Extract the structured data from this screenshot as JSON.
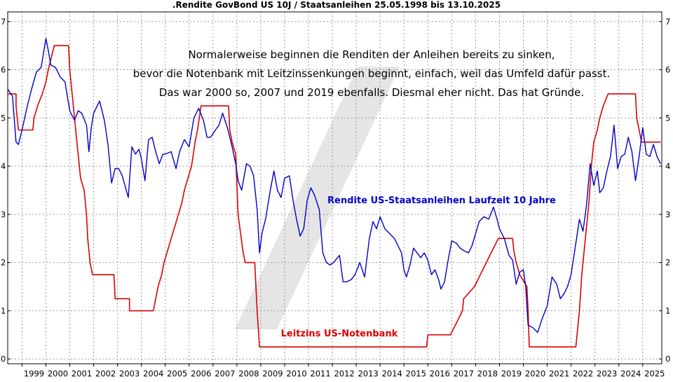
{
  "chart_data": {
    "type": "line",
    "title": ".Rendite GovBond US 10J / Staatsanleihen 25.05.1998 bis 13.10.2025",
    "xlabel": "",
    "ylabel": "",
    "xlim": [
      1998.4,
      2025.8
    ],
    "ylim": [
      -0.1,
      7.2
    ],
    "grid": true,
    "x_ticks": [
      "1999",
      "2000",
      "2001",
      "2002",
      "2003",
      "2004",
      "2005",
      "2006",
      "2007",
      "2008",
      "2009",
      "2010",
      "2011",
      "2012",
      "2013",
      "2014",
      "2015",
      "2016",
      "2017",
      "2018",
      "2019",
      "2020",
      "2021",
      "2022",
      "2023",
      "2024",
      "2025"
    ],
    "y_ticks": [
      "0",
      "1",
      "2",
      "3",
      "4",
      "5",
      "6",
      "7"
    ],
    "annotation_lines": [
      "Normalerweise beginnen die Renditen der Anleihen bereits zu sinken,",
      "bevor die Notenbank mit Leitzinssenkungen beginnt, einfach, weil das Umfeld dafür passt.",
      "Das war 2000 so, 2007 und 2019 ebenfalls. Diesmal eher nicht. Das hat Gründe."
    ],
    "series": [
      {
        "name": "Rendite US-Staatsanleihen Laufzeit 10 Jahre",
        "color": "#0000cc",
        "points": [
          [
            1998.4,
            5.6
          ],
          [
            1998.6,
            5.45
          ],
          [
            1998.75,
            4.5
          ],
          [
            1998.85,
            4.45
          ],
          [
            1999.0,
            4.75
          ],
          [
            1999.2,
            5.2
          ],
          [
            1999.4,
            5.6
          ],
          [
            1999.6,
            5.95
          ],
          [
            1999.8,
            6.05
          ],
          [
            2000.0,
            6.65
          ],
          [
            2000.1,
            6.4
          ],
          [
            2000.2,
            6.1
          ],
          [
            2000.4,
            6.05
          ],
          [
            2000.6,
            5.85
          ],
          [
            2000.8,
            5.75
          ],
          [
            2001.0,
            5.15
          ],
          [
            2001.2,
            4.95
          ],
          [
            2001.35,
            5.15
          ],
          [
            2001.5,
            5.1
          ],
          [
            2001.7,
            4.85
          ],
          [
            2001.8,
            4.3
          ],
          [
            2001.9,
            4.8
          ],
          [
            2002.0,
            5.1
          ],
          [
            2002.25,
            5.35
          ],
          [
            2002.45,
            4.95
          ],
          [
            2002.6,
            4.45
          ],
          [
            2002.75,
            3.65
          ],
          [
            2002.9,
            3.95
          ],
          [
            2003.05,
            3.95
          ],
          [
            2003.2,
            3.8
          ],
          [
            2003.45,
            3.35
          ],
          [
            2003.6,
            4.4
          ],
          [
            2003.75,
            4.25
          ],
          [
            2003.9,
            4.35
          ],
          [
            2004.0,
            4.15
          ],
          [
            2004.15,
            3.7
          ],
          [
            2004.3,
            4.55
          ],
          [
            2004.45,
            4.6
          ],
          [
            2004.6,
            4.3
          ],
          [
            2004.75,
            4.05
          ],
          [
            2004.9,
            4.25
          ],
          [
            2005.0,
            4.25
          ],
          [
            2005.25,
            4.3
          ],
          [
            2005.45,
            3.95
          ],
          [
            2005.6,
            4.3
          ],
          [
            2005.8,
            4.55
          ],
          [
            2006.0,
            4.4
          ],
          [
            2006.2,
            5.0
          ],
          [
            2006.4,
            5.2
          ],
          [
            2006.6,
            4.95
          ],
          [
            2006.75,
            4.6
          ],
          [
            2006.9,
            4.6
          ],
          [
            2007.1,
            4.75
          ],
          [
            2007.25,
            4.85
          ],
          [
            2007.4,
            5.1
          ],
          [
            2007.6,
            4.8
          ],
          [
            2007.8,
            4.4
          ],
          [
            2007.95,
            4.05
          ],
          [
            2008.05,
            3.7
          ],
          [
            2008.2,
            3.5
          ],
          [
            2008.4,
            4.05
          ],
          [
            2008.55,
            4.0
          ],
          [
            2008.7,
            3.8
          ],
          [
            2008.85,
            3.1
          ],
          [
            2008.95,
            2.2
          ],
          [
            2009.05,
            2.6
          ],
          [
            2009.2,
            2.9
          ],
          [
            2009.4,
            3.5
          ],
          [
            2009.55,
            3.9
          ],
          [
            2009.7,
            3.5
          ],
          [
            2009.85,
            3.35
          ],
          [
            2010.0,
            3.75
          ],
          [
            2010.2,
            3.8
          ],
          [
            2010.35,
            3.3
          ],
          [
            2010.5,
            2.9
          ],
          [
            2010.65,
            2.55
          ],
          [
            2010.8,
            2.7
          ],
          [
            2010.95,
            3.3
          ],
          [
            2011.1,
            3.55
          ],
          [
            2011.25,
            3.4
          ],
          [
            2011.45,
            3.1
          ],
          [
            2011.6,
            2.2
          ],
          [
            2011.75,
            2.0
          ],
          [
            2011.9,
            1.95
          ],
          [
            2012.05,
            2.0
          ],
          [
            2012.3,
            2.15
          ],
          [
            2012.45,
            1.6
          ],
          [
            2012.6,
            1.6
          ],
          [
            2012.8,
            1.65
          ],
          [
            2012.95,
            1.75
          ],
          [
            2013.15,
            2.0
          ],
          [
            2013.35,
            1.7
          ],
          [
            2013.55,
            2.5
          ],
          [
            2013.7,
            2.85
          ],
          [
            2013.85,
            2.7
          ],
          [
            2014.0,
            2.95
          ],
          [
            2014.2,
            2.7
          ],
          [
            2014.4,
            2.6
          ],
          [
            2014.6,
            2.5
          ],
          [
            2014.75,
            2.35
          ],
          [
            2014.9,
            2.2
          ],
          [
            2015.0,
            1.85
          ],
          [
            2015.1,
            1.7
          ],
          [
            2015.25,
            1.95
          ],
          [
            2015.4,
            2.3
          ],
          [
            2015.55,
            2.2
          ],
          [
            2015.7,
            2.1
          ],
          [
            2015.85,
            2.2
          ],
          [
            2016.0,
            2.05
          ],
          [
            2016.15,
            1.75
          ],
          [
            2016.3,
            1.85
          ],
          [
            2016.45,
            1.65
          ],
          [
            2016.55,
            1.45
          ],
          [
            2016.7,
            1.6
          ],
          [
            2016.85,
            2.05
          ],
          [
            2017.0,
            2.45
          ],
          [
            2017.2,
            2.4
          ],
          [
            2017.35,
            2.3
          ],
          [
            2017.5,
            2.25
          ],
          [
            2017.7,
            2.2
          ],
          [
            2017.85,
            2.35
          ],
          [
            2018.0,
            2.6
          ],
          [
            2018.15,
            2.85
          ],
          [
            2018.35,
            2.95
          ],
          [
            2018.55,
            2.9
          ],
          [
            2018.75,
            3.15
          ],
          [
            2018.9,
            2.9
          ],
          [
            2019.0,
            2.7
          ],
          [
            2019.2,
            2.5
          ],
          [
            2019.4,
            2.15
          ],
          [
            2019.55,
            2.05
          ],
          [
            2019.7,
            1.55
          ],
          [
            2019.85,
            1.8
          ],
          [
            2020.0,
            1.85
          ],
          [
            2020.1,
            1.5
          ],
          [
            2020.2,
            0.7
          ],
          [
            2020.4,
            0.65
          ],
          [
            2020.6,
            0.55
          ],
          [
            2020.8,
            0.85
          ],
          [
            2021.0,
            1.1
          ],
          [
            2021.2,
            1.7
          ],
          [
            2021.4,
            1.55
          ],
          [
            2021.55,
            1.25
          ],
          [
            2021.7,
            1.35
          ],
          [
            2021.85,
            1.5
          ],
          [
            2022.0,
            1.75
          ],
          [
            2022.2,
            2.4
          ],
          [
            2022.35,
            2.9
          ],
          [
            2022.5,
            2.65
          ],
          [
            2022.65,
            3.2
          ],
          [
            2022.8,
            4.05
          ],
          [
            2022.95,
            3.6
          ],
          [
            2023.1,
            3.9
          ],
          [
            2023.2,
            3.45
          ],
          [
            2023.35,
            3.55
          ],
          [
            2023.5,
            3.9
          ],
          [
            2023.65,
            4.2
          ],
          [
            2023.8,
            4.85
          ],
          [
            2023.95,
            3.95
          ],
          [
            2024.1,
            4.2
          ],
          [
            2024.25,
            4.25
          ],
          [
            2024.4,
            4.6
          ],
          [
            2024.55,
            4.3
          ],
          [
            2024.7,
            3.7
          ],
          [
            2024.85,
            4.2
          ],
          [
            2025.0,
            4.8
          ],
          [
            2025.15,
            4.25
          ],
          [
            2025.3,
            4.2
          ],
          [
            2025.45,
            4.45
          ],
          [
            2025.6,
            4.2
          ],
          [
            2025.75,
            4.05
          ]
        ]
      },
      {
        "name": "Leitzins US-Notenbank",
        "color": "#dd0000",
        "points": [
          [
            1998.4,
            5.5
          ],
          [
            1998.75,
            5.5
          ],
          [
            1998.75,
            5.25
          ],
          [
            1998.8,
            5.0
          ],
          [
            1998.85,
            4.75
          ],
          [
            1999.45,
            4.75
          ],
          [
            1999.5,
            5.0
          ],
          [
            1999.65,
            5.25
          ],
          [
            1999.85,
            5.5
          ],
          [
            2000.0,
            5.75
          ],
          [
            2000.1,
            6.0
          ],
          [
            2000.35,
            6.5
          ],
          [
            2000.95,
            6.5
          ],
          [
            2001.0,
            6.0
          ],
          [
            2001.1,
            5.5
          ],
          [
            2001.2,
            5.0
          ],
          [
            2001.3,
            4.5
          ],
          [
            2001.4,
            4.0
          ],
          [
            2001.45,
            3.75
          ],
          [
            2001.6,
            3.5
          ],
          [
            2001.7,
            3.0
          ],
          [
            2001.75,
            2.5
          ],
          [
            2001.85,
            2.0
          ],
          [
            2001.95,
            1.75
          ],
          [
            2002.85,
            1.75
          ],
          [
            2002.9,
            1.25
          ],
          [
            2003.5,
            1.25
          ],
          [
            2003.5,
            1.0
          ],
          [
            2004.5,
            1.0
          ],
          [
            2004.6,
            1.25
          ],
          [
            2004.7,
            1.5
          ],
          [
            2004.85,
            1.75
          ],
          [
            2004.95,
            2.0
          ],
          [
            2005.1,
            2.25
          ],
          [
            2005.25,
            2.5
          ],
          [
            2005.4,
            2.75
          ],
          [
            2005.55,
            3.0
          ],
          [
            2005.7,
            3.25
          ],
          [
            2005.8,
            3.5
          ],
          [
            2005.95,
            3.75
          ],
          [
            2006.1,
            4.0
          ],
          [
            2006.25,
            4.5
          ],
          [
            2006.35,
            4.75
          ],
          [
            2006.5,
            5.25
          ],
          [
            2007.65,
            5.25
          ],
          [
            2007.7,
            4.75
          ],
          [
            2007.8,
            4.5
          ],
          [
            2007.95,
            4.25
          ],
          [
            2008.05,
            3.0
          ],
          [
            2008.25,
            2.25
          ],
          [
            2008.35,
            2.0
          ],
          [
            2008.75,
            2.0
          ],
          [
            2008.85,
            1.0
          ],
          [
            2008.95,
            0.25
          ],
          [
            2015.95,
            0.25
          ],
          [
            2016.0,
            0.5
          ],
          [
            2016.95,
            0.5
          ],
          [
            2017.2,
            0.75
          ],
          [
            2017.45,
            1.0
          ],
          [
            2017.5,
            1.25
          ],
          [
            2017.95,
            1.5
          ],
          [
            2018.2,
            1.75
          ],
          [
            2018.45,
            2.0
          ],
          [
            2018.7,
            2.25
          ],
          [
            2018.95,
            2.5
          ],
          [
            2019.55,
            2.5
          ],
          [
            2019.6,
            2.25
          ],
          [
            2019.7,
            2.0
          ],
          [
            2019.85,
            1.75
          ],
          [
            2020.15,
            1.5
          ],
          [
            2020.2,
            1.0
          ],
          [
            2020.25,
            0.25
          ],
          [
            2022.2,
            0.25
          ],
          [
            2022.25,
            0.5
          ],
          [
            2022.35,
            1.0
          ],
          [
            2022.45,
            1.75
          ],
          [
            2022.6,
            2.5
          ],
          [
            2022.75,
            3.25
          ],
          [
            2022.85,
            4.0
          ],
          [
            2022.95,
            4.5
          ],
          [
            2023.1,
            4.75
          ],
          [
            2023.2,
            5.0
          ],
          [
            2023.35,
            5.25
          ],
          [
            2023.55,
            5.5
          ],
          [
            2024.7,
            5.5
          ],
          [
            2024.75,
            5.0
          ],
          [
            2024.85,
            4.75
          ],
          [
            2024.95,
            4.5
          ],
          [
            2025.75,
            4.5
          ]
        ]
      }
    ]
  }
}
